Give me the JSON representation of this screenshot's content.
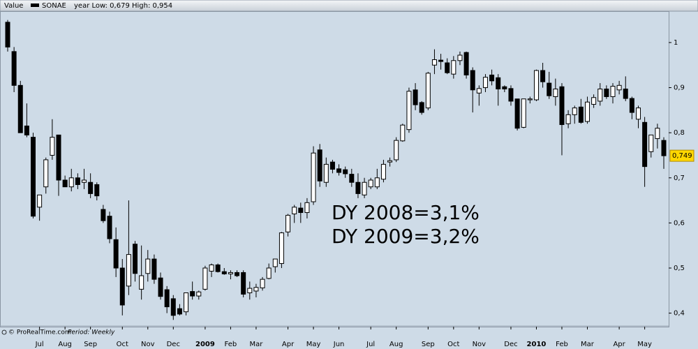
{
  "chart_data": {
    "type": "candlestick",
    "header_label": "Value",
    "series_name": "SONAE",
    "year_range": "year Low: 0,679 High: 0,954",
    "source": "© ProRealTime.com",
    "period": "Period: Weekly",
    "annotations": [
      "DY 2008=3,1%",
      "DY 2009=3,2%"
    ],
    "last_label": "0,749",
    "up_color": "#ffffff",
    "down_color": "#000000",
    "categories": [
      null,
      null,
      null,
      null,
      null,
      "Jul",
      null,
      null,
      null,
      "Aug",
      null,
      null,
      null,
      "Sep",
      null,
      null,
      null,
      null,
      "Oct",
      null,
      null,
      null,
      "Nov",
      null,
      null,
      null,
      "Dec",
      null,
      null,
      null,
      null,
      "2009",
      null,
      null,
      null,
      "Feb",
      null,
      null,
      null,
      "Mar",
      null,
      null,
      null,
      null,
      "Apr",
      null,
      null,
      null,
      "May",
      null,
      null,
      null,
      "Jun",
      null,
      null,
      null,
      null,
      "Jul",
      null,
      null,
      null,
      "Aug",
      null,
      null,
      null,
      null,
      "Sep",
      null,
      null,
      null,
      "Oct",
      null,
      null,
      null,
      "Nov",
      null,
      null,
      null,
      null,
      "Dec",
      null,
      null,
      null,
      "2010",
      null,
      null,
      null,
      "Feb",
      null,
      null,
      null,
      "Mar",
      null,
      null,
      null,
      null,
      "Apr",
      null,
      null,
      null,
      "May",
      null,
      null,
      null
    ],
    "open": [
      1.045,
      0.98,
      0.905,
      0.815,
      0.79,
      0.635,
      0.68,
      0.75,
      0.795,
      0.695,
      0.68,
      0.7,
      0.69,
      0.69,
      0.685,
      0.63,
      0.615,
      0.563,
      0.5,
      0.46,
      0.553,
      0.453,
      0.488,
      0.52,
      0.478,
      0.452,
      0.432,
      0.41,
      0.403,
      0.448,
      0.438,
      0.453,
      0.493,
      0.507,
      0.492,
      0.487,
      0.49,
      0.49,
      0.445,
      0.449,
      0.456,
      0.477,
      0.503,
      0.51,
      0.58,
      0.62,
      0.633,
      0.623,
      0.647,
      0.762,
      0.69,
      0.735,
      0.72,
      0.718,
      0.708,
      0.69,
      0.662,
      0.68,
      0.68,
      0.697,
      0.735,
      0.74,
      0.782,
      0.807,
      0.895,
      0.867,
      0.855,
      0.95,
      0.961,
      0.955,
      0.93,
      0.96,
      0.978,
      0.938,
      0.888,
      0.9,
      0.928,
      0.922,
      0.902,
      0.898,
      0.875,
      0.812,
      0.873,
      0.873,
      0.938,
      0.91,
      0.88,
      0.902,
      0.82,
      0.84,
      0.857,
      0.825,
      0.863,
      0.87,
      0.897,
      0.88,
      0.895,
      0.897,
      0.876,
      0.83,
      0.823,
      0.758,
      0.787,
      0.783
    ],
    "high": [
      1.05,
      0.99,
      0.915,
      0.865,
      0.8,
      0.66,
      0.745,
      0.83,
      0.795,
      0.705,
      0.72,
      0.71,
      0.72,
      0.71,
      0.69,
      0.64,
      0.625,
      0.59,
      0.52,
      0.65,
      0.56,
      0.55,
      0.54,
      0.53,
      0.49,
      0.46,
      0.44,
      0.42,
      0.44,
      0.47,
      0.45,
      0.505,
      0.51,
      0.51,
      0.5,
      0.495,
      0.495,
      0.495,
      0.47,
      0.465,
      0.48,
      0.51,
      0.52,
      0.58,
      0.62,
      0.64,
      0.645,
      0.655,
      0.77,
      0.775,
      0.745,
      0.74,
      0.73,
      0.725,
      0.72,
      0.71,
      0.7,
      0.7,
      0.72,
      0.74,
      0.745,
      0.79,
      0.82,
      0.9,
      0.91,
      0.87,
      0.935,
      0.985,
      0.975,
      0.965,
      0.97,
      0.98,
      0.98,
      0.945,
      0.905,
      0.93,
      0.94,
      0.93,
      0.905,
      0.905,
      0.875,
      0.875,
      0.88,
      0.94,
      0.955,
      0.935,
      0.92,
      0.91,
      0.85,
      0.86,
      0.875,
      0.88,
      0.885,
      0.91,
      0.905,
      0.91,
      0.915,
      0.925,
      0.88,
      0.86,
      0.835,
      0.795,
      0.82,
      0.79
    ],
    "low": [
      0.98,
      0.89,
      0.8,
      0.79,
      0.61,
      0.605,
      0.665,
      0.74,
      0.66,
      0.68,
      0.67,
      0.675,
      0.675,
      0.655,
      0.65,
      0.6,
      0.555,
      0.48,
      0.395,
      0.44,
      0.47,
      0.43,
      0.47,
      0.465,
      0.43,
      0.4,
      0.385,
      0.395,
      0.395,
      0.43,
      0.43,
      0.45,
      0.48,
      0.49,
      0.485,
      0.475,
      0.48,
      0.435,
      0.43,
      0.435,
      0.45,
      0.475,
      0.49,
      0.5,
      0.57,
      0.6,
      0.6,
      0.61,
      0.64,
      0.68,
      0.68,
      0.71,
      0.705,
      0.7,
      0.68,
      0.655,
      0.655,
      0.675,
      0.675,
      0.69,
      0.725,
      0.735,
      0.78,
      0.8,
      0.85,
      0.84,
      0.85,
      0.93,
      0.94,
      0.93,
      0.92,
      0.95,
      0.92,
      0.845,
      0.86,
      0.89,
      0.905,
      0.86,
      0.89,
      0.86,
      0.805,
      0.81,
      0.865,
      0.87,
      0.9,
      0.875,
      0.86,
      0.75,
      0.81,
      0.82,
      0.82,
      0.82,
      0.855,
      0.86,
      0.875,
      0.865,
      0.885,
      0.87,
      0.83,
      0.81,
      0.68,
      0.745,
      0.765,
      0.72
    ],
    "close": [
      0.99,
      0.905,
      0.8,
      0.795,
      0.615,
      0.662,
      0.74,
      0.79,
      0.695,
      0.68,
      0.7,
      0.685,
      0.695,
      0.665,
      0.66,
      0.605,
      0.565,
      0.5,
      0.418,
      0.53,
      0.488,
      0.483,
      0.52,
      0.475,
      0.437,
      0.414,
      0.395,
      0.398,
      0.445,
      0.438,
      0.447,
      0.5,
      0.507,
      0.492,
      0.487,
      0.49,
      0.483,
      0.442,
      0.455,
      0.457,
      0.475,
      0.5,
      0.52,
      0.578,
      0.617,
      0.635,
      0.623,
      0.645,
      0.755,
      0.693,
      0.73,
      0.719,
      0.712,
      0.709,
      0.69,
      0.665,
      0.69,
      0.695,
      0.7,
      0.73,
      0.738,
      0.783,
      0.817,
      0.892,
      0.862,
      0.845,
      0.932,
      0.962,
      0.958,
      0.933,
      0.96,
      0.972,
      0.928,
      0.895,
      0.898,
      0.923,
      0.915,
      0.897,
      0.897,
      0.87,
      0.81,
      0.875,
      0.875,
      0.938,
      0.913,
      0.882,
      0.897,
      0.818,
      0.84,
      0.855,
      0.823,
      0.868,
      0.878,
      0.897,
      0.88,
      0.903,
      0.905,
      0.876,
      0.845,
      0.855,
      0.725,
      0.795,
      0.81,
      0.749
    ],
    "ylim": [
      0.37,
      1.068
    ],
    "yticks": [
      {
        "value": 0.4,
        "label": "0,4"
      },
      {
        "value": 0.5,
        "label": "0,5"
      },
      {
        "value": 0.6,
        "label": "0,6"
      },
      {
        "value": 0.7,
        "label": "0,7"
      },
      {
        "value": 0.8,
        "label": "0,8"
      },
      {
        "value": 0.9,
        "label": "0,9"
      },
      1
    ]
  }
}
